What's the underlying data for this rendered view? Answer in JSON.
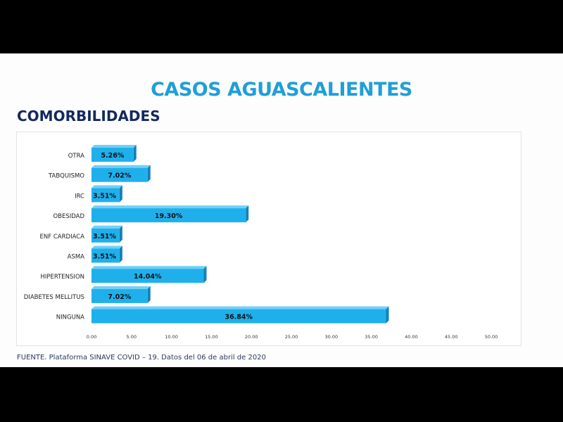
{
  "slide": {
    "title": "CASOS AGUASCALIENTES",
    "subtitle": "COMORBILIDADES",
    "source": "FUENTE. Plataforma SINAVE COVID – 19. Datos del 06 de abril de 2020"
  },
  "colors": {
    "bar_front": "#1fb0ec",
    "bar_side": "#1480ba",
    "bar_top": "#6fd0f6",
    "title": "#1f9fd8",
    "subtitle": "#13295e"
  },
  "chart_data": {
    "type": "bar",
    "orientation": "horizontal",
    "categories": [
      "OTRA",
      "TABQUISMO",
      "IRC",
      "OBESIDAD",
      "ENF CARDIACA",
      "ASMA",
      "HIPERTENSION",
      "DIABETES MELLITUS",
      "NINGUNA"
    ],
    "values": [
      5.26,
      7.02,
      3.51,
      19.3,
      3.51,
      3.51,
      14.04,
      7.02,
      36.84
    ],
    "value_labels": [
      "5.26%",
      "7.02%",
      "3.51%",
      "19.30%",
      "3.51%",
      "3.51%",
      "14.04%",
      "7.02%",
      "36.84%"
    ],
    "xlim": [
      0,
      50
    ],
    "x_ticks": [
      "0.00",
      "5.00",
      "10.00",
      "15.00",
      "20.00",
      "25.00",
      "30.00",
      "35.00",
      "40.00",
      "45.00",
      "50.00"
    ],
    "grid": false,
    "legend": false
  }
}
